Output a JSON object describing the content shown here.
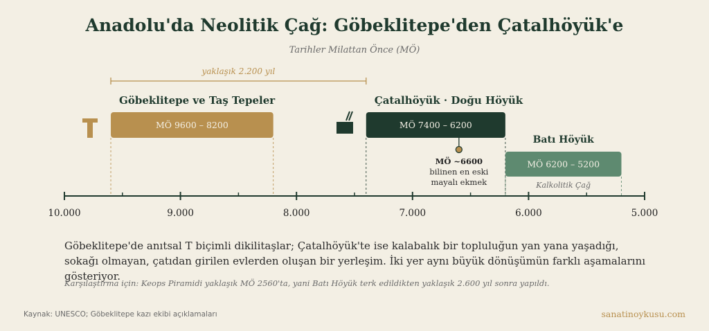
{
  "title": "Anadolu'da Neolitik Çağ: Göbeklitepe'den Çatalhöyük'e",
  "subtitle": "Tarihler Milattan Önce (MÖ)",
  "span_label": "yaklaşık 2.200 yıl",
  "axis": {
    "min": 10000,
    "max": 5000,
    "ticks": [
      "10.000",
      "9.000",
      "8.000",
      "7.000",
      "6.000",
      "5.000"
    ],
    "tick_values": [
      10000,
      9000,
      8000,
      7000,
      6000,
      5000
    ],
    "minor_tick_values": [
      9500,
      8500,
      7500,
      6500,
      5500
    ]
  },
  "periods": [
    {
      "name": "Göbeklitepe ve Taş Tepeler",
      "label": "MÖ 9600 – 8200",
      "start": 9600,
      "end": 8200,
      "color": "#b8904f",
      "icon": "t-pillar-icon"
    },
    {
      "name": "Çatalhöyük · Doğu Höyük",
      "label": "MÖ 7400 – 6200",
      "start": 7400,
      "end": 6200,
      "color": "#1f3a2e",
      "icon": "house-icon"
    },
    {
      "name": "Batı Höyük",
      "label": "MÖ 6200 – 5200",
      "start": 6200,
      "end": 5200,
      "color": "#5e8a70",
      "sublabel": "Kalkolitik Çağ"
    }
  ],
  "event": {
    "value": 6600,
    "label": "MÖ ~6600",
    "text_line1": "bilinen en eski",
    "text_line2": "mayalı ekmek"
  },
  "description_line1": "Göbeklitepe'de anıtsal T biçimli dikilitaşlar; Çatalhöyük'te ise kalabalık bir topluluğun yan yana yaşadığı,",
  "description_line2": "sokağı olmayan, çatıdan girilen evlerden oluşan bir yerleşim. İki yer aynı büyük dönüşümün farklı aşamalarını gösteriyor.",
  "note": "Karşılaştırma için: Keops Piramidi yaklaşık MÖ 2560'ta, yani Batı Höyük terk edildikten yaklaşık 2.600 yıl sonra yapıldı.",
  "source": "Kaynak: UNESCO; Göbeklitepe kazı ekibi açıklamaları",
  "brand": "sanatinoykusu.com"
}
